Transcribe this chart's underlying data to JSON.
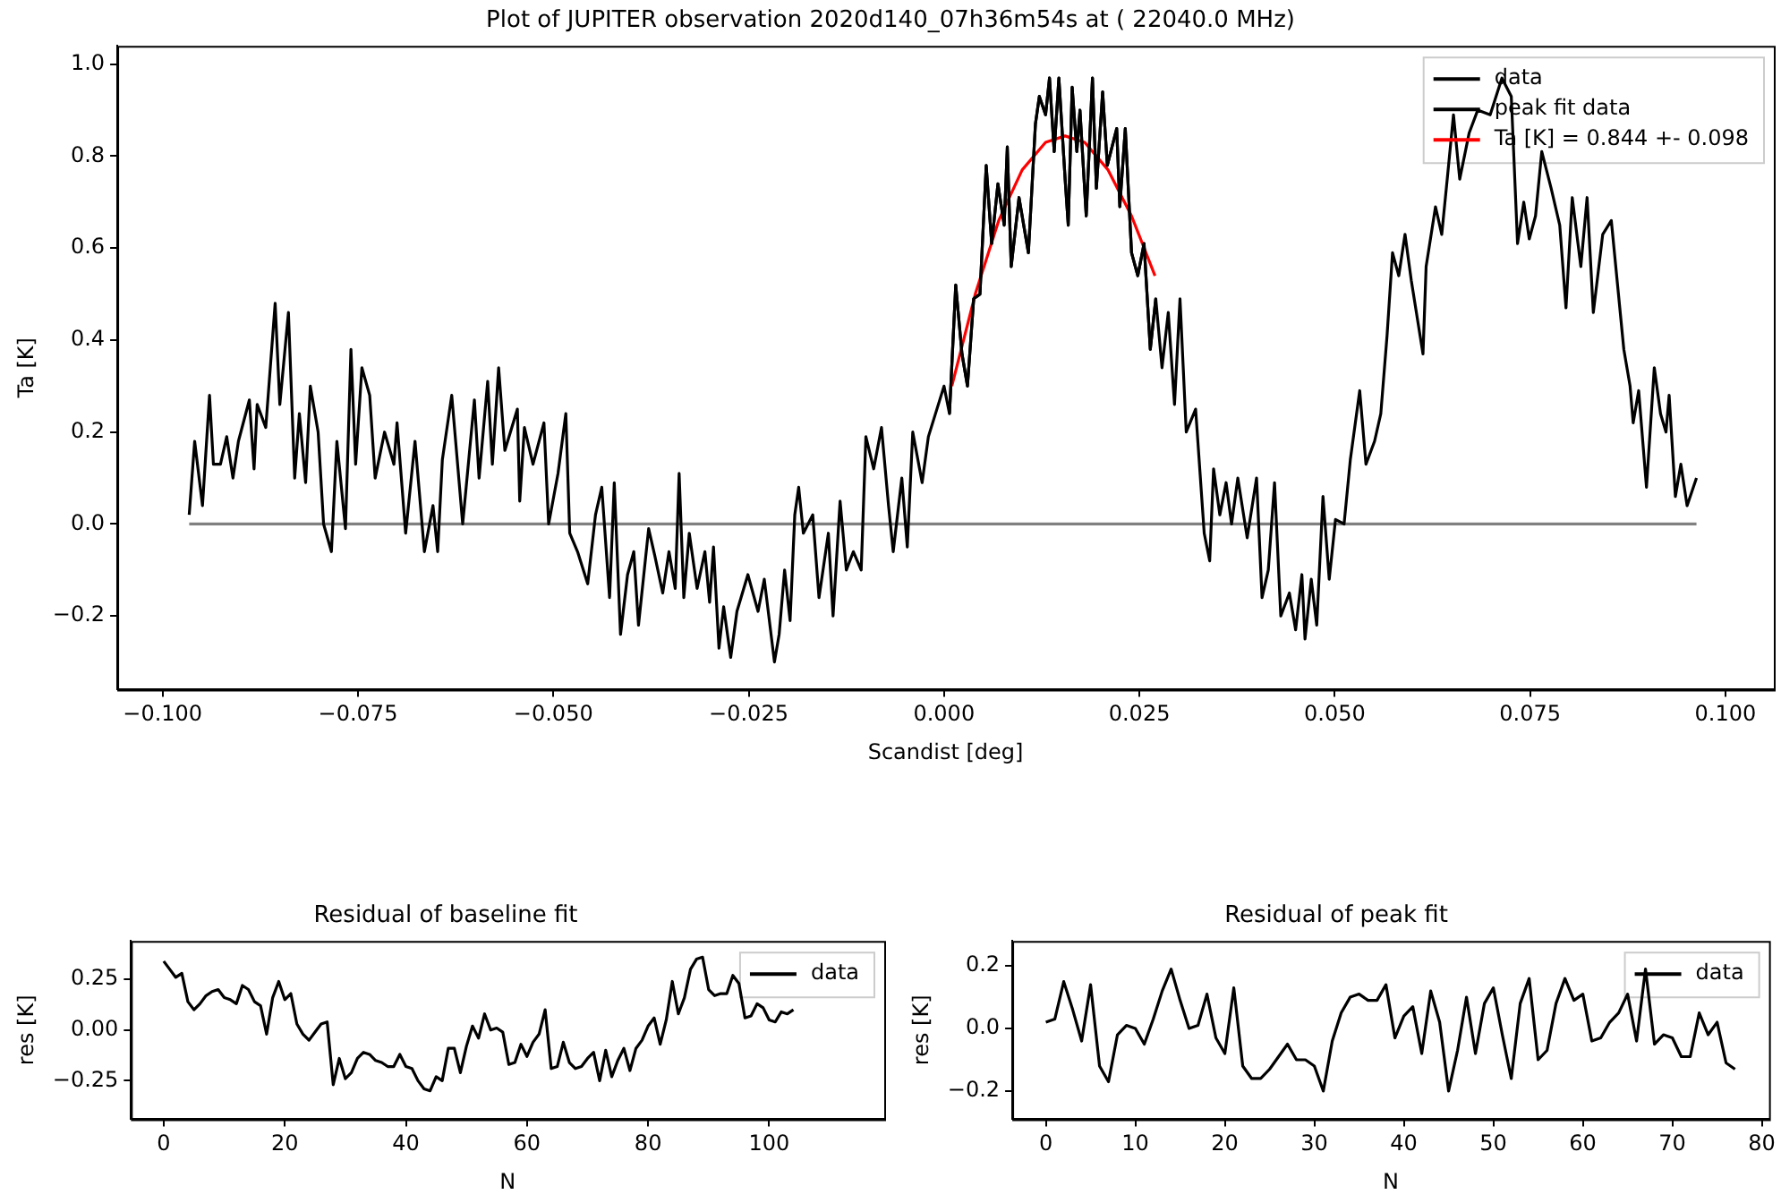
{
  "chart_data": [
    {
      "type": "line",
      "title": "Plot of JUPITER observation 2020d140_07h36m54s at ( 22040.0 MHz)",
      "xlabel": "Scandist [deg]",
      "ylabel": "Ta [K]",
      "xlim": [
        -0.1058,
        0.1062
      ],
      "ylim": [
        -0.36,
        1.04
      ],
      "xticks": [
        {
          "value": -0.1,
          "label": "−0.100"
        },
        {
          "value": -0.075,
          "label": "−0.075"
        },
        {
          "value": -0.05,
          "label": "−0.050"
        },
        {
          "value": -0.025,
          "label": "−0.025"
        },
        {
          "value": 0,
          "label": "0.000"
        },
        {
          "value": 0.025,
          "label": "0.025"
        },
        {
          "value": 0.05,
          "label": "0.050"
        },
        {
          "value": 0.075,
          "label": "0.075"
        },
        {
          "value": 0.1,
          "label": "0.100"
        }
      ],
      "yticks": [
        {
          "value": -0.2,
          "label": "−0.2"
        },
        {
          "value": 0,
          "label": "0.0"
        },
        {
          "value": 0.2,
          "label": "0.2"
        },
        {
          "value": 0.4,
          "label": "0.4"
        },
        {
          "value": 0.6,
          "label": "0.6"
        },
        {
          "value": 0.8,
          "label": "0.8"
        },
        {
          "value": 1,
          "label": "1.0"
        }
      ],
      "grid": false,
      "legend": "top right",
      "marker": "none",
      "series": [
        {
          "name": "data",
          "color": "#000000",
          "x": [
            -0.0966,
            -0.0959,
            -0.0949,
            -0.094,
            -0.0935,
            -0.0926,
            -0.0918,
            -0.091,
            -0.0903,
            -0.0889,
            -0.0883,
            -0.0879,
            -0.0868,
            -0.0856,
            -0.085,
            -0.0839,
            -0.0831,
            -0.0825,
            -0.0817,
            -0.0811,
            -0.0801,
            -0.0794,
            -0.0784,
            -0.0777,
            -0.0766,
            -0.0759,
            -0.0753,
            -0.0745,
            -0.0735,
            -0.0728,
            -0.0716,
            -0.0704,
            -0.07,
            -0.0689,
            -0.0677,
            -0.0665,
            -0.0654,
            -0.0648,
            -0.0642,
            -0.063,
            -0.0616,
            -0.0601,
            -0.0595,
            -0.0584,
            -0.0578,
            -0.057,
            -0.0562,
            -0.0546,
            -0.0543,
            -0.0537,
            -0.0526,
            -0.0512,
            -0.0506,
            -0.0494,
            -0.0484,
            -0.0479,
            -0.0469,
            -0.0456,
            -0.0446,
            -0.0438,
            -0.0428,
            -0.0422,
            -0.0414,
            -0.0405,
            -0.0397,
            -0.0391,
            -0.0378,
            -0.037,
            -0.036,
            -0.0352,
            -0.0344,
            -0.0339,
            -0.0333,
            -0.0326,
            -0.0316,
            -0.0306,
            -0.03,
            -0.0295,
            -0.0288,
            -0.0282,
            -0.0273,
            -0.0265,
            -0.0251,
            -0.0238,
            -0.023,
            -0.0217,
            -0.0211,
            -0.0204,
            -0.0197,
            -0.0191,
            -0.0186,
            -0.018,
            -0.0168,
            -0.016,
            -0.0148,
            -0.0142,
            -0.0133,
            -0.0125,
            -0.0116,
            -0.0106,
            -0.01,
            -0.009,
            -0.008,
            -0.0071,
            -0.0065,
            -0.0054,
            -0.0047,
            -0.004,
            -0.0028,
            -0.002,
            0.0,
            0.0007,
            0.0015,
            0.0023,
            0.003,
            0.0038,
            0.0046,
            0.0054,
            0.0061,
            0.0069,
            0.0077,
            0.0081,
            0.0086,
            0.0096,
            0.0108,
            0.0117,
            0.0122,
            0.013,
            0.0135,
            0.0141,
            0.0147,
            0.0155,
            0.0159,
            0.0164,
            0.017,
            0.0174,
            0.0182,
            0.019,
            0.0195,
            0.0203,
            0.0209,
            0.0221,
            0.0225,
            0.0232,
            0.024,
            0.0248,
            0.0256,
            0.0264,
            0.0271,
            0.0279,
            0.0287,
            0.0295,
            0.0302,
            0.031,
            0.0322,
            0.0333,
            0.034,
            0.0345,
            0.0353,
            0.0361,
            0.0368,
            0.0376,
            0.0388,
            0.04,
            0.0407,
            0.0415,
            0.0423,
            0.0431,
            0.0442,
            0.045,
            0.0458,
            0.0462,
            0.047,
            0.0477,
            0.0485,
            0.0493,
            0.0501,
            0.0512,
            0.052,
            0.0532,
            0.054,
            0.0551,
            0.0559,
            0.0567,
            0.0574,
            0.0582,
            0.059,
            0.0598,
            0.0613,
            0.0617,
            0.0629,
            0.0637,
            0.0644,
            0.0652,
            0.066,
            0.0672,
            0.0683,
            0.0699,
            0.0714,
            0.0726,
            0.0734,
            0.0742,
            0.0749,
            0.0757,
            0.0765,
            0.0777,
            0.0788,
            0.0796,
            0.0804,
            0.0815,
            0.0823,
            0.0831,
            0.0843,
            0.0854,
            0.0862,
            0.087,
            0.0878,
            0.0882,
            0.0889,
            0.0899,
            0.0909,
            0.0917,
            0.0924,
            0.0928,
            0.0936,
            0.0943,
            0.0951,
            0.0963
          ],
          "values": [
            0.02,
            0.18,
            0.04,
            0.28,
            0.13,
            0.13,
            0.19,
            0.1,
            0.18,
            0.27,
            0.12,
            0.26,
            0.21,
            0.48,
            0.26,
            0.46,
            0.1,
            0.24,
            0.09,
            0.3,
            0.2,
            0.0,
            -0.06,
            0.18,
            -0.01,
            0.38,
            0.13,
            0.34,
            0.28,
            0.1,
            0.2,
            0.13,
            0.22,
            -0.02,
            0.18,
            -0.06,
            0.04,
            -0.06,
            0.14,
            0.28,
            0.0,
            0.27,
            0.1,
            0.31,
            0.13,
            0.34,
            0.16,
            0.25,
            0.05,
            0.21,
            0.13,
            0.22,
            0.0,
            0.11,
            0.24,
            -0.02,
            -0.06,
            -0.13,
            0.02,
            0.08,
            -0.16,
            0.09,
            -0.24,
            -0.11,
            -0.06,
            -0.22,
            -0.01,
            -0.07,
            -0.15,
            -0.06,
            -0.14,
            0.11,
            -0.16,
            -0.02,
            -0.14,
            -0.06,
            -0.17,
            -0.05,
            -0.27,
            -0.18,
            -0.29,
            -0.19,
            -0.11,
            -0.19,
            -0.12,
            -0.3,
            -0.24,
            -0.1,
            -0.21,
            0.02,
            0.08,
            -0.02,
            0.02,
            -0.16,
            -0.02,
            -0.2,
            0.05,
            -0.1,
            -0.06,
            -0.1,
            0.19,
            0.12,
            0.21,
            0.04,
            -0.06,
            0.1,
            -0.05,
            0.2,
            0.09,
            0.19,
            0.3,
            0.24,
            0.52,
            0.37,
            0.3,
            0.49,
            0.5,
            0.78,
            0.61,
            0.74,
            0.65,
            0.82,
            0.56,
            0.71,
            0.59,
            0.87,
            0.93,
            0.89,
            0.97,
            0.81,
            0.97,
            0.75,
            0.65,
            0.95,
            0.81,
            0.9,
            0.67,
            0.97,
            0.73,
            0.94,
            0.78,
            0.86,
            0.69,
            0.86,
            0.59,
            0.54,
            0.61,
            0.38,
            0.49,
            0.34,
            0.46,
            0.26,
            0.49,
            0.2,
            0.25,
            -0.02,
            -0.08,
            0.12,
            0.02,
            0.09,
            0.0,
            0.1,
            -0.03,
            0.1,
            -0.16,
            -0.1,
            0.09,
            -0.2,
            -0.15,
            -0.23,
            -0.11,
            -0.25,
            -0.12,
            -0.22,
            0.06,
            -0.12,
            0.01,
            0.0,
            0.14,
            0.29,
            0.13,
            0.18,
            0.24,
            0.41,
            0.59,
            0.54,
            0.63,
            0.53,
            0.37,
            0.56,
            0.69,
            0.63,
            0.75,
            0.89,
            0.75,
            0.85,
            0.9,
            0.89,
            0.97,
            0.93,
            0.61,
            0.7,
            0.62,
            0.67,
            0.81,
            0.73,
            0.65,
            0.47,
            0.71,
            0.56,
            0.71,
            0.46,
            0.63,
            0.66,
            0.52,
            0.38,
            0.3,
            0.22,
            0.29,
            0.08,
            0.34,
            0.24,
            0.2,
            0.28,
            0.06,
            0.13,
            0.04,
            0.1
          ]
        },
        {
          "name": "peak fit data",
          "color": "#000000",
          "x": [
            0.0007,
            0.0015,
            0.0023,
            0.003,
            0.0038,
            0.0046,
            0.0054,
            0.0061,
            0.0069,
            0.0077,
            0.0081,
            0.0086,
            0.0096,
            0.0108,
            0.0117,
            0.0122,
            0.013,
            0.0135,
            0.0141,
            0.0147,
            0.0155,
            0.0159,
            0.0164,
            0.017,
            0.0174,
            0.0182,
            0.019,
            0.0195,
            0.0203,
            0.0209,
            0.0221,
            0.0225,
            0.0232,
            0.024,
            0.0248,
            0.0256,
            0.0264,
            0.0271
          ],
          "values": [
            0.24,
            0.52,
            0.37,
            0.3,
            0.49,
            0.5,
            0.78,
            0.61,
            0.74,
            0.65,
            0.82,
            0.56,
            0.71,
            0.59,
            0.87,
            0.93,
            0.89,
            0.97,
            0.81,
            0.97,
            0.75,
            0.65,
            0.95,
            0.81,
            0.9,
            0.67,
            0.97,
            0.73,
            0.94,
            0.78,
            0.86,
            0.69,
            0.86,
            0.59,
            0.54,
            0.61,
            0.38,
            0.49
          ]
        },
        {
          "name": "Ta [K] = 0.844 +- 0.098",
          "color": "#ff0000",
          "x": [
            0.001,
            0.004,
            0.007,
            0.01,
            0.013,
            0.0155,
            0.018,
            0.021,
            0.024,
            0.027
          ],
          "values": [
            0.3,
            0.5,
            0.66,
            0.77,
            0.83,
            0.844,
            0.83,
            0.77,
            0.67,
            0.54
          ]
        },
        {
          "color": "#808080",
          "x": [
            -0.0966,
            0.0963
          ],
          "values": [
            0,
            0
          ]
        }
      ]
    },
    {
      "type": "line",
      "title": "Residual of baseline fit",
      "xlabel": "N",
      "ylabel": "res [K]",
      "xlim": [
        -5.4,
        119
      ],
      "ylim": [
        -0.44,
        0.44
      ],
      "xticks": [
        0,
        20,
        40,
        60,
        80,
        100
      ],
      "yticks": [
        {
          "value": -0.25,
          "label": "−0.25"
        },
        {
          "value": 0,
          "label": "0.00"
        },
        {
          "value": 0.25,
          "label": "0.25"
        }
      ],
      "grid": false,
      "legend": "top right",
      "marker": "none",
      "series": [
        {
          "name": "data",
          "color": "#000000",
          "x": [
            0,
            1,
            2,
            3,
            4,
            5,
            6,
            7,
            8,
            9,
            10,
            11,
            12,
            13,
            14,
            15,
            16,
            17,
            18,
            19,
            20,
            21,
            22,
            23,
            24,
            25,
            26,
            27,
            28,
            29,
            30,
            31,
            32,
            33,
            34,
            35,
            36,
            37,
            38,
            39,
            40,
            41,
            42,
            43,
            44,
            45,
            46,
            47,
            48,
            49,
            50,
            51,
            52,
            53,
            54,
            55,
            56,
            57,
            58,
            59,
            60,
            61,
            62,
            63,
            64,
            65,
            66,
            67,
            68,
            69,
            70,
            71,
            72,
            73,
            74,
            75,
            76,
            77,
            78,
            79,
            80,
            81,
            82,
            83,
            84,
            85,
            86,
            87,
            88,
            89,
            90,
            91,
            92,
            93,
            94,
            95,
            96,
            97,
            98,
            99,
            100,
            101,
            102,
            103,
            104
          ],
          "values": [
            0.34,
            0.3,
            0.26,
            0.28,
            0.14,
            0.1,
            0.13,
            0.17,
            0.19,
            0.2,
            0.16,
            0.15,
            0.13,
            0.22,
            0.2,
            0.14,
            0.12,
            -0.02,
            0.16,
            0.24,
            0.15,
            0.18,
            0.03,
            -0.02,
            -0.05,
            -0.01,
            0.03,
            0.04,
            -0.27,
            -0.14,
            -0.24,
            -0.21,
            -0.14,
            -0.11,
            -0.12,
            -0.15,
            -0.16,
            -0.18,
            -0.18,
            -0.12,
            -0.18,
            -0.19,
            -0.25,
            -0.29,
            -0.3,
            -0.23,
            -0.25,
            -0.09,
            -0.09,
            -0.21,
            -0.08,
            0.02,
            -0.04,
            0.08,
            0.0,
            0.01,
            -0.01,
            -0.17,
            -0.16,
            -0.07,
            -0.13,
            -0.06,
            -0.02,
            0.1,
            -0.19,
            -0.18,
            -0.06,
            -0.16,
            -0.19,
            -0.18,
            -0.14,
            -0.11,
            -0.25,
            -0.1,
            -0.23,
            -0.15,
            -0.09,
            -0.2,
            -0.09,
            -0.05,
            0.02,
            0.06,
            -0.07,
            0.05,
            0.24,
            0.08,
            0.16,
            0.3,
            0.35,
            0.36,
            0.2,
            0.17,
            0.18,
            0.18,
            0.27,
            0.23,
            0.06,
            0.07,
            0.13,
            0.11,
            0.05,
            0.04,
            0.09,
            0.08,
            0.1
          ]
        }
      ]
    },
    {
      "type": "line",
      "title": "Residual of peak fit",
      "xlabel": "N",
      "ylabel": "res [K]",
      "xlim": [
        -3.75,
        80.8
      ],
      "ylim": [
        -0.29,
        0.28
      ],
      "xticks": [
        0,
        10,
        20,
        30,
        40,
        50,
        60,
        70,
        80
      ],
      "yticks": [
        {
          "value": -0.2,
          "label": "−0.2"
        },
        {
          "value": 0,
          "label": "0.0"
        },
        {
          "value": 0.2,
          "label": "0.2"
        }
      ],
      "grid": false,
      "legend": "top right",
      "marker": "none",
      "series": [
        {
          "name": "data",
          "color": "#000000",
          "x": [
            0,
            1,
            2,
            3,
            4,
            5,
            6,
            7,
            8,
            9,
            10,
            11,
            12,
            13,
            14,
            15,
            16,
            17,
            18,
            19,
            20,
            21,
            22,
            23,
            24,
            25,
            26,
            27,
            28,
            29,
            30,
            31,
            32,
            33,
            34,
            35,
            36,
            37,
            38,
            39,
            40,
            41,
            42,
            43,
            44,
            45,
            46,
            47,
            48,
            49,
            50,
            51,
            52,
            53,
            54,
            55,
            56,
            57,
            58,
            59,
            60,
            61,
            62,
            63,
            64,
            65,
            66,
            67,
            68,
            69,
            70,
            71,
            72,
            73,
            74,
            75,
            76,
            77
          ],
          "values": [
            0.02,
            0.03,
            0.15,
            0.06,
            -0.04,
            0.14,
            -0.12,
            -0.17,
            -0.02,
            0.01,
            0.0,
            -0.05,
            0.03,
            0.12,
            0.19,
            0.09,
            0.0,
            0.01,
            0.11,
            -0.03,
            -0.08,
            0.13,
            -0.12,
            -0.16,
            -0.16,
            -0.13,
            -0.09,
            -0.05,
            -0.1,
            -0.1,
            -0.12,
            -0.2,
            -0.04,
            0.05,
            0.1,
            0.11,
            0.09,
            0.09,
            0.14,
            -0.03,
            0.04,
            0.07,
            -0.08,
            0.12,
            0.02,
            -0.2,
            -0.07,
            0.1,
            -0.08,
            0.08,
            0.13,
            -0.02,
            -0.16,
            0.08,
            0.16,
            -0.1,
            -0.07,
            0.08,
            0.16,
            0.09,
            0.11,
            -0.04,
            -0.03,
            0.02,
            0.05,
            0.11,
            -0.04,
            0.19,
            -0.05,
            -0.02,
            -0.03,
            -0.09,
            -0.09,
            0.05,
            -0.02,
            0.02,
            -0.11,
            -0.13
          ]
        }
      ]
    }
  ]
}
